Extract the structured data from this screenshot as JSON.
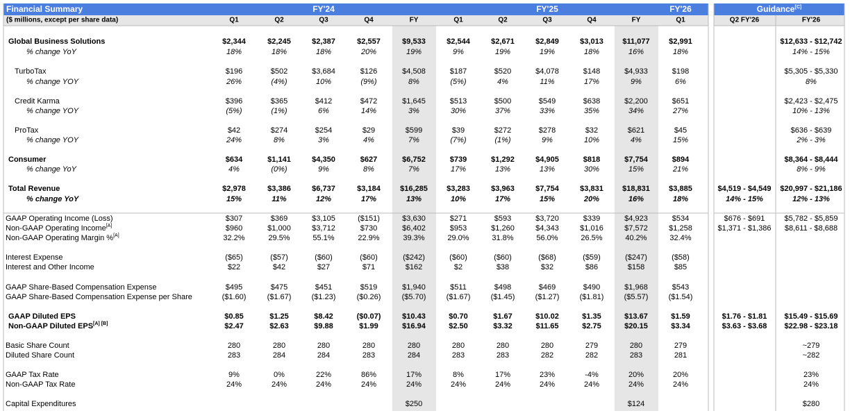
{
  "header": {
    "title": "Financial Summary",
    "subtitle": "($ millions, except per share data)",
    "groups": [
      "FY'24",
      "FY'25",
      "FY'26"
    ],
    "guidance": {
      "label": "Guidance",
      "note": "[C]"
    },
    "columns": [
      "Q1",
      "Q2",
      "Q3",
      "Q4",
      "FY",
      "Q1",
      "Q2",
      "Q3",
      "Q4",
      "FY",
      "Q1"
    ],
    "guidance_columns": [
      "Q2 FY'26",
      "FY'26"
    ]
  },
  "rows": [
    {
      "label": "Global Business Solutions",
      "values": [
        "$2,344",
        "$2,245",
        "$2,387",
        "$2,557",
        "$9,533",
        "$2,544",
        "$2,671",
        "$2,849",
        "$3,013",
        "$11,077",
        "$2,991"
      ],
      "guidance": [
        null,
        "$12,633 - $12,742"
      ]
    },
    {
      "label": "% change YoY",
      "values": [
        "18%",
        "18%",
        "18%",
        "20%",
        "19%",
        "9%",
        "19%",
        "19%",
        "18%",
        "16%",
        "18%"
      ],
      "guidance": [
        null,
        "14% - 15%"
      ]
    },
    {
      "label": "TurboTax",
      "values": [
        "$196",
        "$502",
        "$3,684",
        "$126",
        "$4,508",
        "$187",
        "$520",
        "$4,078",
        "$148",
        "$4,933",
        "$198"
      ],
      "guidance": [
        null,
        "$5,305 - $5,330"
      ]
    },
    {
      "label": "% change YOY",
      "values": [
        "26%",
        "(4%)",
        "10%",
        "(9%)",
        "8%",
        "(5%)",
        "4%",
        "11%",
        "17%",
        "9%",
        "6%"
      ],
      "guidance": [
        null,
        "8%"
      ]
    },
    {
      "label": "Credit Karma",
      "values": [
        "$396",
        "$365",
        "$412",
        "$472",
        "$1,645",
        "$513",
        "$500",
        "$549",
        "$638",
        "$2,200",
        "$651"
      ],
      "guidance": [
        null,
        "$2,423 - $2,475"
      ]
    },
    {
      "label": "% change YOY",
      "values": [
        "(5%)",
        "(1%)",
        "6%",
        "14%",
        "3%",
        "30%",
        "37%",
        "33%",
        "35%",
        "34%",
        "27%"
      ],
      "guidance": [
        null,
        "10% - 13%"
      ]
    },
    {
      "label": "ProTax",
      "values": [
        "$42",
        "$274",
        "$254",
        "$29",
        "$599",
        "$39",
        "$272",
        "$278",
        "$32",
        "$621",
        "$45"
      ],
      "guidance": [
        null,
        "$636 - $639"
      ]
    },
    {
      "label": "% change YOY",
      "values": [
        "24%",
        "8%",
        "3%",
        "4%",
        "7%",
        "(7%)",
        "(1%)",
        "9%",
        "10%",
        "4%",
        "15%"
      ],
      "guidance": [
        null,
        "2% - 3%"
      ]
    },
    {
      "label": "Consumer",
      "values": [
        "$634",
        "$1,141",
        "$4,350",
        "$627",
        "$6,752",
        "$739",
        "$1,292",
        "$4,905",
        "$818",
        "$7,754",
        "$894"
      ],
      "guidance": [
        null,
        "$8,364 - $8,444"
      ]
    },
    {
      "label": "% change YoY",
      "values": [
        "4%",
        "(0%)",
        "9%",
        "8%",
        "7%",
        "17%",
        "13%",
        "13%",
        "30%",
        "15%",
        "21%"
      ],
      "guidance": [
        null,
        "8% - 9%"
      ]
    },
    {
      "label": "Total Revenue",
      "values": [
        "$2,978",
        "$3,386",
        "$6,737",
        "$3,184",
        "$16,285",
        "$3,283",
        "$3,963",
        "$7,754",
        "$3,831",
        "$18,831",
        "$3,885"
      ],
      "guidance": [
        "$4,519 - $4,549",
        "$20,997 - $21,186"
      ]
    },
    {
      "label": "% change YoY",
      "values": [
        "15%",
        "11%",
        "12%",
        "17%",
        "13%",
        "10%",
        "17%",
        "15%",
        "20%",
        "16%",
        "18%"
      ],
      "guidance": [
        "14% - 15%",
        "12% - 13%"
      ]
    },
    {
      "label": "GAAP Operating Income (Loss)",
      "values": [
        "$307",
        "$369",
        "$3,105",
        "($151)",
        "$3,630",
        "$271",
        "$593",
        "$3,720",
        "$339",
        "$4,923",
        "$534"
      ],
      "guidance": [
        "$676 - $691",
        "$5,782 - $5,859"
      ]
    },
    {
      "label": "Non-GAAP Operating Income",
      "note": "[A]",
      "values": [
        "$960",
        "$1,000",
        "$3,712",
        "$730",
        "$6,402",
        "$953",
        "$1,260",
        "$4,343",
        "$1,016",
        "$7,572",
        "$1,258"
      ],
      "guidance": [
        "$1,371 - $1,386",
        "$8,611 - $8,688"
      ]
    },
    {
      "label": "Non-GAAP Operating Margin %",
      "note": "[A]",
      "values": [
        "32.2%",
        "29.5%",
        "55.1%",
        "22.9%",
        "39.3%",
        "29.0%",
        "31.8%",
        "56.0%",
        "26.5%",
        "40.2%",
        "32.4%"
      ],
      "guidance": [
        null,
        null
      ]
    },
    {
      "label": "Interest Expense",
      "values": [
        "($65)",
        "($57)",
        "($60)",
        "($60)",
        "($242)",
        "($60)",
        "($60)",
        "($68)",
        "($59)",
        "($247)",
        "($58)"
      ],
      "guidance": [
        null,
        null
      ]
    },
    {
      "label": "Interest and Other Income",
      "values": [
        "$22",
        "$42",
        "$27",
        "$71",
        "$162",
        "$2",
        "$38",
        "$32",
        "$86",
        "$158",
        "$85"
      ],
      "guidance": [
        null,
        null
      ]
    },
    {
      "label": "GAAP Share-Based Compensation Expense",
      "values": [
        "$495",
        "$475",
        "$451",
        "$519",
        "$1,940",
        "$511",
        "$498",
        "$469",
        "$490",
        "$1,968",
        "$543"
      ],
      "guidance": [
        null,
        null
      ]
    },
    {
      "label": "GAAP Share-Based Compensation Expense per Share",
      "values": [
        "($1.60)",
        "($1.67)",
        "($1.23)",
        "($0.26)",
        "($5.70)",
        "($1.67)",
        "($1.45)",
        "($1.27)",
        "($1.81)",
        "($5.57)",
        "($1.54)"
      ],
      "guidance": [
        null,
        null
      ]
    },
    {
      "label": "GAAP Diluted EPS",
      "values": [
        "$0.85",
        "$1.25",
        "$8.42",
        "($0.07)",
        "$10.43",
        "$0.70",
        "$1.67",
        "$10.02",
        "$1.35",
        "$13.67",
        "$1.59"
      ],
      "guidance": [
        "$1.76 - $1.81",
        "$15.49 - $15.69"
      ]
    },
    {
      "label": "Non-GAAP Diluted EPS",
      "note": "[A] [B]",
      "values": [
        "$2.47",
        "$2.63",
        "$9.88",
        "$1.99",
        "$16.94",
        "$2.50",
        "$3.32",
        "$11.65",
        "$2.75",
        "$20.15",
        "$3.34"
      ],
      "guidance": [
        "$3.63 - $3.68",
        "$22.98 - $23.18"
      ]
    },
    {
      "label": "Basic Share Count",
      "values": [
        "280",
        "280",
        "280",
        "280",
        "280",
        "280",
        "280",
        "280",
        "279",
        "280",
        "279"
      ],
      "guidance": [
        null,
        "~279"
      ]
    },
    {
      "label": "Diluted Share Count",
      "values": [
        "283",
        "284",
        "284",
        "283",
        "284",
        "283",
        "283",
        "282",
        "282",
        "283",
        "281"
      ],
      "guidance": [
        null,
        "~282"
      ]
    },
    {
      "label": "GAAP Tax Rate",
      "values": [
        "9%",
        "0%",
        "22%",
        "86%",
        "17%",
        "8%",
        "17%",
        "23%",
        "-4%",
        "20%",
        "20%"
      ],
      "guidance": [
        null,
        "23%"
      ]
    },
    {
      "label": "Non-GAAP Tax Rate",
      "values": [
        "24%",
        "24%",
        "24%",
        "24%",
        "24%",
        "24%",
        "24%",
        "24%",
        "24%",
        "24%",
        "24%"
      ],
      "guidance": [
        null,
        "24%"
      ]
    },
    {
      "label": "Capital Expenditures",
      "values": [
        null,
        null,
        null,
        null,
        "$250",
        null,
        null,
        null,
        null,
        "$124",
        null
      ],
      "guidance": [
        null,
        "$280"
      ]
    }
  ]
}
